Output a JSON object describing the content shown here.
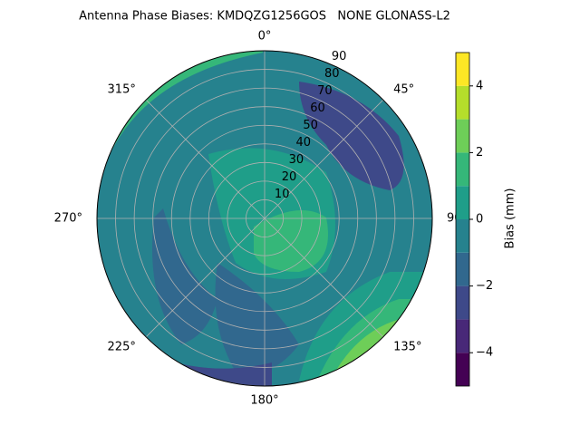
{
  "chart_data": {
    "type": "polar-contour",
    "title": "Antenna Phase Biases: KMDQZG1256GOS   NONE GLONASS-L2",
    "rlim": [
      0,
      90
    ],
    "rticks": [
      10,
      20,
      30,
      40,
      50,
      60,
      70,
      80,
      90
    ],
    "thetaticks": [
      {
        "value": 0,
        "label": "0°"
      },
      {
        "value": 45,
        "label": "45°"
      },
      {
        "value": 90,
        "label": "90°"
      },
      {
        "value": 135,
        "label": "135°"
      },
      {
        "value": 180,
        "label": "180°"
      },
      {
        "value": 225,
        "label": "225°"
      },
      {
        "value": 270,
        "label": "270°"
      },
      {
        "value": 315,
        "label": "315°"
      }
    ],
    "grid": true,
    "colorbar": {
      "label": "Bias (mm)",
      "levels": [
        -5,
        -4,
        -3,
        -2,
        -1,
        0,
        1,
        2,
        3,
        4,
        5
      ],
      "colors": [
        "#440154",
        "#482878",
        "#3e4989",
        "#31688e",
        "#26828e",
        "#1f9e89",
        "#35b779",
        "#6ece58",
        "#b5de2b",
        "#fde725"
      ],
      "ticks": [
        {
          "value": -4,
          "label": "−4"
        },
        {
          "value": -2,
          "label": "−2"
        },
        {
          "value": 0,
          "label": "0"
        },
        {
          "value": 2,
          "label": "2"
        },
        {
          "value": 4,
          "label": "4"
        }
      ]
    }
  }
}
